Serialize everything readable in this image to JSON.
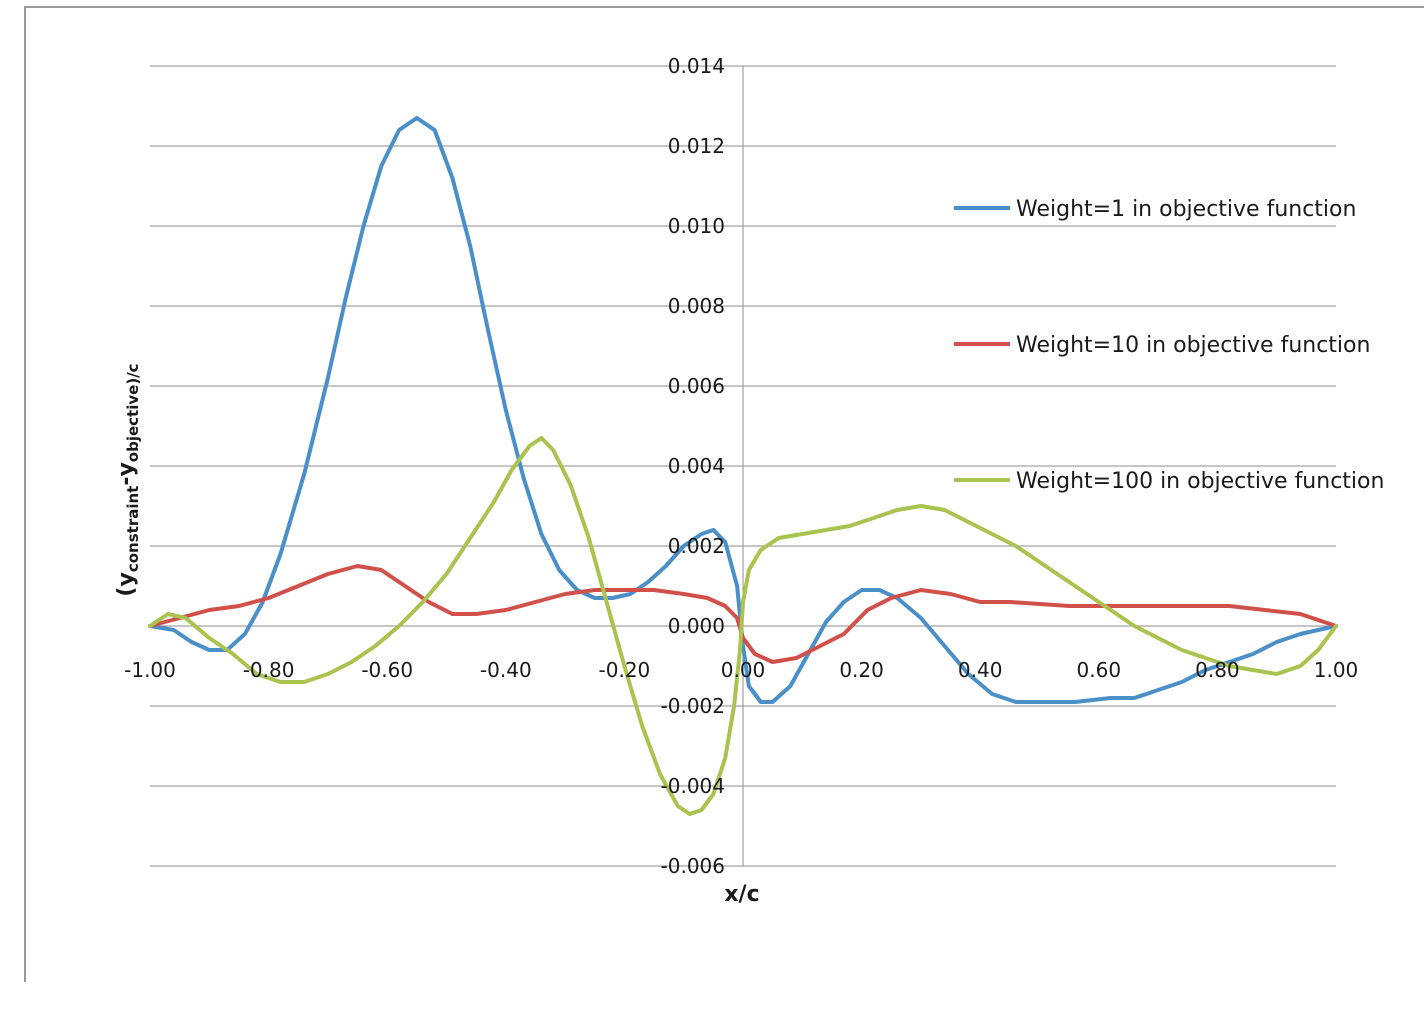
{
  "chart_data": {
    "type": "line",
    "title": "",
    "xlabel": "x/c",
    "ylabel": {
      "prefix": "(y",
      "sub1": "constraint",
      "mid": "-y",
      "sub2": "objective",
      "suffix": ")/c"
    },
    "xlim": [
      -1.0,
      1.0
    ],
    "ylim": [
      -0.006,
      0.014
    ],
    "xticks": [
      "-1.00",
      "-0.80",
      "-0.60",
      "-0.40",
      "-0.20",
      "0.00",
      "0.20",
      "0.40",
      "0.60",
      "0.80",
      "1.00"
    ],
    "yticks": [
      "0.014",
      "0.012",
      "0.010",
      "0.008",
      "0.006",
      "0.004",
      "0.002",
      "0.000",
      "-0.002",
      "-0.004",
      "-0.006"
    ],
    "grid": "horizontal",
    "legend_position": "right",
    "series": [
      {
        "name": "Weight=1 in objective function",
        "color": "#4a8fc8",
        "points": [
          [
            -1.0,
            0.0
          ],
          [
            -0.96,
            -0.0001
          ],
          [
            -0.93,
            -0.0004
          ],
          [
            -0.9,
            -0.0006
          ],
          [
            -0.87,
            -0.0006
          ],
          [
            -0.84,
            -0.0002
          ],
          [
            -0.81,
            0.0006
          ],
          [
            -0.78,
            0.0018
          ],
          [
            -0.74,
            0.0038
          ],
          [
            -0.7,
            0.0062
          ],
          [
            -0.67,
            0.0082
          ],
          [
            -0.64,
            0.01
          ],
          [
            -0.61,
            0.0115
          ],
          [
            -0.58,
            0.0124
          ],
          [
            -0.55,
            0.0127
          ],
          [
            -0.52,
            0.0124
          ],
          [
            -0.49,
            0.0112
          ],
          [
            -0.46,
            0.0095
          ],
          [
            -0.43,
            0.0074
          ],
          [
            -0.4,
            0.0054
          ],
          [
            -0.37,
            0.0037
          ],
          [
            -0.34,
            0.0023
          ],
          [
            -0.31,
            0.0014
          ],
          [
            -0.28,
            0.0009
          ],
          [
            -0.25,
            0.0007
          ],
          [
            -0.22,
            0.0007
          ],
          [
            -0.19,
            0.0008
          ],
          [
            -0.16,
            0.0011
          ],
          [
            -0.13,
            0.0015
          ],
          [
            -0.1,
            0.002
          ],
          [
            -0.07,
            0.0023
          ],
          [
            -0.05,
            0.0024
          ],
          [
            -0.03,
            0.0021
          ],
          [
            -0.01,
            0.001
          ],
          [
            0.0,
            -0.0005
          ],
          [
            0.01,
            -0.0015
          ],
          [
            0.03,
            -0.0019
          ],
          [
            0.05,
            -0.0019
          ],
          [
            0.08,
            -0.0015
          ],
          [
            0.11,
            -0.0007
          ],
          [
            0.14,
            0.0001
          ],
          [
            0.17,
            0.0006
          ],
          [
            0.2,
            0.0009
          ],
          [
            0.23,
            0.0009
          ],
          [
            0.26,
            0.0007
          ],
          [
            0.3,
            0.0002
          ],
          [
            0.34,
            -0.0005
          ],
          [
            0.38,
            -0.0012
          ],
          [
            0.42,
            -0.0017
          ],
          [
            0.46,
            -0.0019
          ],
          [
            0.5,
            -0.0019
          ],
          [
            0.56,
            -0.0019
          ],
          [
            0.62,
            -0.0018
          ],
          [
            0.66,
            -0.0018
          ],
          [
            0.7,
            -0.0016
          ],
          [
            0.74,
            -0.0014
          ],
          [
            0.78,
            -0.0011
          ],
          [
            0.82,
            -0.0009
          ],
          [
            0.86,
            -0.0007
          ],
          [
            0.9,
            -0.0004
          ],
          [
            0.94,
            -0.0002
          ],
          [
            0.97,
            -0.0001
          ],
          [
            1.0,
            0.0
          ]
        ]
      },
      {
        "name": "Weight=10 in objective function",
        "color": "#d2504a",
        "points": [
          [
            -1.0,
            0.0
          ],
          [
            -0.95,
            0.0002
          ],
          [
            -0.9,
            0.0004
          ],
          [
            -0.85,
            0.0005
          ],
          [
            -0.8,
            0.0007
          ],
          [
            -0.75,
            0.001
          ],
          [
            -0.7,
            0.0013
          ],
          [
            -0.65,
            0.0015
          ],
          [
            -0.61,
            0.0014
          ],
          [
            -0.57,
            0.001
          ],
          [
            -0.53,
            0.0006
          ],
          [
            -0.49,
            0.0003
          ],
          [
            -0.45,
            0.0003
          ],
          [
            -0.4,
            0.0004
          ],
          [
            -0.35,
            0.0006
          ],
          [
            -0.3,
            0.0008
          ],
          [
            -0.25,
            0.0009
          ],
          [
            -0.2,
            0.0009
          ],
          [
            -0.15,
            0.0009
          ],
          [
            -0.1,
            0.0008
          ],
          [
            -0.06,
            0.0007
          ],
          [
            -0.03,
            0.0005
          ],
          [
            -0.01,
            0.0002
          ],
          [
            0.0,
            -0.0003
          ],
          [
            0.02,
            -0.0007
          ],
          [
            0.05,
            -0.0009
          ],
          [
            0.09,
            -0.0008
          ],
          [
            0.13,
            -0.0005
          ],
          [
            0.17,
            -0.0002
          ],
          [
            0.21,
            0.0004
          ],
          [
            0.25,
            0.0007
          ],
          [
            0.3,
            0.0009
          ],
          [
            0.35,
            0.0008
          ],
          [
            0.4,
            0.0006
          ],
          [
            0.45,
            0.0006
          ],
          [
            0.55,
            0.0005
          ],
          [
            0.65,
            0.0005
          ],
          [
            0.75,
            0.0005
          ],
          [
            0.82,
            0.0005
          ],
          [
            0.88,
            0.0004
          ],
          [
            0.94,
            0.0003
          ],
          [
            1.0,
            0.0
          ]
        ]
      },
      {
        "name": "Weight=100 in objective function",
        "color": "#a9c34e",
        "points": [
          [
            -1.0,
            0.0
          ],
          [
            -0.97,
            0.0003
          ],
          [
            -0.94,
            0.0002
          ],
          [
            -0.9,
            -0.0003
          ],
          [
            -0.86,
            -0.0007
          ],
          [
            -0.82,
            -0.0012
          ],
          [
            -0.78,
            -0.0014
          ],
          [
            -0.74,
            -0.0014
          ],
          [
            -0.7,
            -0.0012
          ],
          [
            -0.66,
            -0.0009
          ],
          [
            -0.62,
            -0.0005
          ],
          [
            -0.58,
            0.0
          ],
          [
            -0.54,
            0.0006
          ],
          [
            -0.5,
            0.0013
          ],
          [
            -0.46,
            0.0022
          ],
          [
            -0.42,
            0.0031
          ],
          [
            -0.39,
            0.0039
          ],
          [
            -0.36,
            0.0045
          ],
          [
            -0.34,
            0.0047
          ],
          [
            -0.32,
            0.0044
          ],
          [
            -0.29,
            0.0035
          ],
          [
            -0.26,
            0.0022
          ],
          [
            -0.23,
            0.0006
          ],
          [
            -0.2,
            -0.001
          ],
          [
            -0.17,
            -0.0025
          ],
          [
            -0.14,
            -0.0037
          ],
          [
            -0.11,
            -0.0045
          ],
          [
            -0.09,
            -0.0047
          ],
          [
            -0.07,
            -0.0046
          ],
          [
            -0.05,
            -0.0042
          ],
          [
            -0.03,
            -0.0033
          ],
          [
            -0.015,
            -0.002
          ],
          [
            -0.005,
            -0.0006
          ],
          [
            0.0,
            0.0006
          ],
          [
            0.01,
            0.0014
          ],
          [
            0.03,
            0.0019
          ],
          [
            0.06,
            0.0022
          ],
          [
            0.1,
            0.0023
          ],
          [
            0.14,
            0.0024
          ],
          [
            0.18,
            0.0025
          ],
          [
            0.22,
            0.0027
          ],
          [
            0.26,
            0.0029
          ],
          [
            0.3,
            0.003
          ],
          [
            0.34,
            0.0029
          ],
          [
            0.38,
            0.0026
          ],
          [
            0.42,
            0.0023
          ],
          [
            0.46,
            0.002
          ],
          [
            0.5,
            0.0016
          ],
          [
            0.54,
            0.0012
          ],
          [
            0.58,
            0.0008
          ],
          [
            0.62,
            0.0004
          ],
          [
            0.66,
            0.0
          ],
          [
            0.7,
            -0.0003
          ],
          [
            0.74,
            -0.0006
          ],
          [
            0.78,
            -0.0008
          ],
          [
            0.82,
            -0.001
          ],
          [
            0.86,
            -0.0011
          ],
          [
            0.9,
            -0.0012
          ],
          [
            0.94,
            -0.001
          ],
          [
            0.97,
            -0.0006
          ],
          [
            1.0,
            0.0
          ]
        ]
      }
    ]
  }
}
